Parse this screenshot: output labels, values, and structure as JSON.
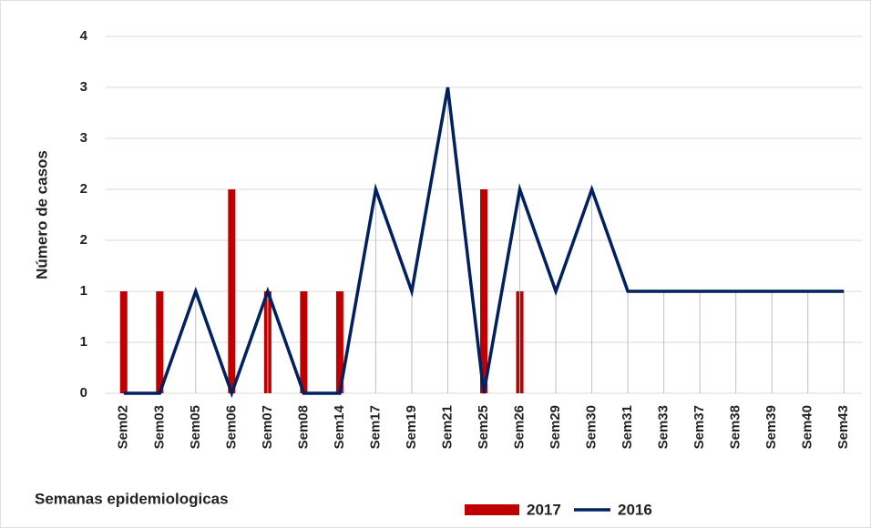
{
  "chart_data": {
    "type": "bar_line",
    "x_label": "Semanas epidemiologicas",
    "y_label": "Número de casos",
    "categories": [
      "Sem02",
      "Sem03",
      "Sem05",
      "Sem06",
      "Sem07",
      "Sem08",
      "Sem14",
      "Sem17",
      "Sem19",
      "Sem21",
      "Sem25",
      "Sem26",
      "Sem29",
      "Sem30",
      "Sem31",
      "Sem33",
      "Sem37",
      "Sem38",
      "Sem39",
      "Sem40",
      "Sem43"
    ],
    "series": [
      {
        "name": "2017",
        "type": "bar",
        "color": "#c00000",
        "values": [
          1,
          1,
          0,
          2,
          1,
          1,
          1,
          0,
          0,
          0,
          2,
          1,
          0,
          0,
          0,
          0,
          0,
          0,
          0,
          0,
          0
        ]
      },
      {
        "name": "2016",
        "type": "line",
        "color": "#002060",
        "values": [
          0,
          0,
          1,
          0,
          1,
          0,
          0,
          2,
          1,
          3,
          0,
          2,
          1,
          2,
          1,
          1,
          1,
          1,
          1,
          1,
          1
        ]
      }
    ],
    "ylim": [
      0,
      3.5
    ],
    "yticks": [
      0,
      {
        "value": 0.5,
        "label": "1"
      },
      1,
      {
        "value": 1.5,
        "label": "2"
      },
      2,
      {
        "value": 2.5,
        "label": "3"
      },
      3,
      {
        "value": 3.5,
        "label": "4"
      }
    ],
    "grid": true
  }
}
